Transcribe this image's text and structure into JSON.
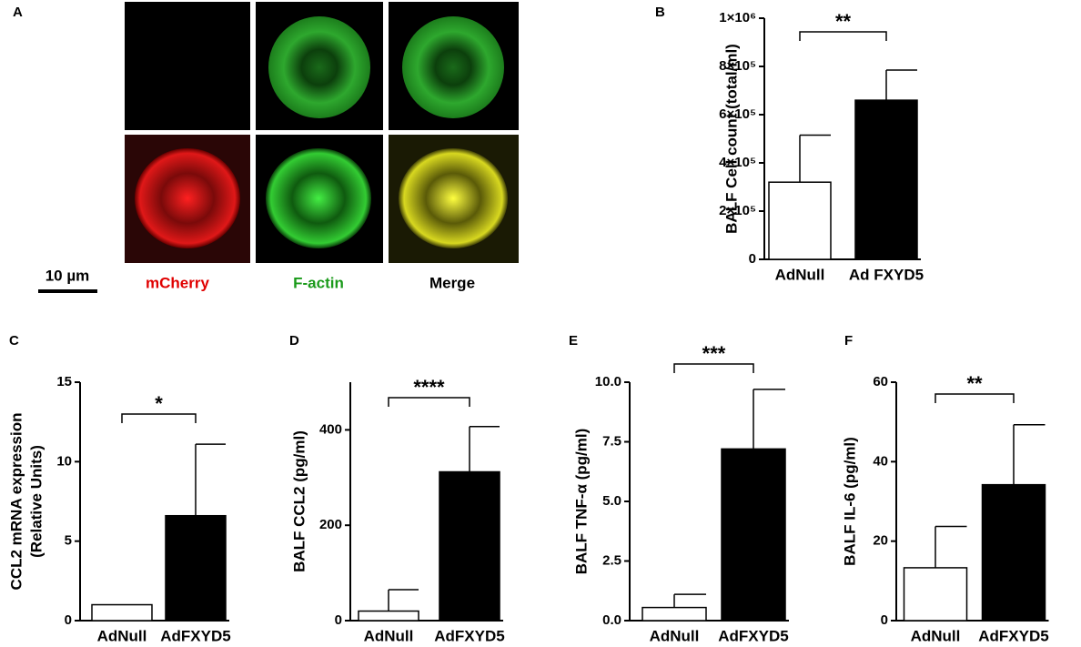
{
  "panel_a": {
    "label": "A",
    "scale": "10 µm",
    "channels": [
      "mCherry",
      "F-actin",
      "Merge"
    ]
  },
  "chart_data": [
    {
      "type": "bar",
      "panel": "B",
      "ylabel": [
        "BALF Cell count (total/ml)"
      ],
      "categories": [
        "AdNull",
        "Ad FXYD5"
      ],
      "values": [
        320000,
        660000
      ],
      "errors": [
        195000,
        125000
      ],
      "colors": [
        "#ffffff",
        "#000000"
      ],
      "ylim": [
        0,
        1000000
      ],
      "yticks": [
        0,
        {
          "value": 200000,
          "label": "2×10⁵"
        },
        {
          "value": 400000,
          "label": "4×10⁵"
        },
        {
          "value": 600000,
          "label": "6×10⁵"
        },
        {
          "value": 800000,
          "label": "8×10⁵"
        },
        {
          "value": 1000000,
          "label": "1×10⁶"
        }
      ],
      "significance": "**"
    },
    {
      "type": "bar",
      "panel": "C",
      "ylabel": [
        "CCL2 mRNA expression",
        "(Relative Units)"
      ],
      "categories": [
        "AdNull",
        "AdFXYD5"
      ],
      "values": [
        1,
        6.6
      ],
      "errors": [
        null,
        4.5
      ],
      "colors": [
        "#ffffff",
        "#000000"
      ],
      "ylim": [
        0,
        15
      ],
      "yticks": [
        0,
        5,
        10,
        15
      ],
      "significance": "*"
    },
    {
      "type": "bar",
      "panel": "D",
      "ylabel": [
        "BALF  CCL2  (pg/ml)"
      ],
      "categories": [
        "AdNull",
        "AdFXYD5"
      ],
      "values": [
        20,
        312
      ],
      "errors": [
        45,
        95
      ],
      "colors": [
        "#ffffff",
        "#000000"
      ],
      "ylim": [
        0,
        500
      ],
      "yticks": [
        0,
        200,
        400
      ],
      "significance": "****"
    },
    {
      "type": "bar",
      "panel": "E",
      "ylabel": [
        "BALF TNF-α (pg/ml)"
      ],
      "categories": [
        "AdNull",
        "AdFXYD5"
      ],
      "values": [
        0.55,
        7.2
      ],
      "errors": [
        0.55,
        2.5
      ],
      "colors": [
        "#ffffff",
        "#000000"
      ],
      "ylim": [
        0,
        10
      ],
      "yticks": [
        {
          "value": 0,
          "label": "0.0"
        },
        2.5,
        {
          "value": 5,
          "label": "5.0"
        },
        7.5,
        {
          "value": 10,
          "label": "10.0"
        }
      ],
      "significance": "***"
    },
    {
      "type": "bar",
      "panel": "F",
      "ylabel": [
        "BALF IL-6 (pg/ml)"
      ],
      "categories": [
        "AdNull",
        "AdFXYD5"
      ],
      "values": [
        13.3,
        34.2
      ],
      "errors": [
        10.4,
        15.1
      ],
      "colors": [
        "#ffffff",
        "#000000"
      ],
      "ylim": [
        0,
        60
      ],
      "yticks": [
        0,
        20,
        40,
        60
      ],
      "significance": "**"
    }
  ]
}
